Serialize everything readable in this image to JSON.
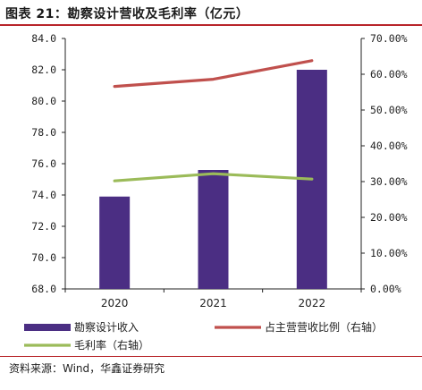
{
  "title": "图表 21：勘察设计营收及毛利率（亿元）",
  "source": "资料来源：Wind，华鑫证券研究",
  "colors": {
    "bar": "#4b2e83",
    "share_line": "#c0504d",
    "margin_line": "#9bbb59",
    "rule": "#b8242a"
  },
  "chart_data": {
    "type": "bar",
    "categories": [
      "2020",
      "2021",
      "2022"
    ],
    "left_axis": {
      "min": 68.0,
      "max": 84.0,
      "step": 2.0,
      "ticks": [
        "68.0",
        "70.0",
        "72.0",
        "74.0",
        "76.0",
        "78.0",
        "80.0",
        "82.0",
        "84.0"
      ]
    },
    "right_axis": {
      "min": 0,
      "max": 70,
      "step": 10,
      "ticks": [
        "0.00%",
        "10.00%",
        "20.00%",
        "30.00%",
        "40.00%",
        "50.00%",
        "60.00%",
        "70.00%"
      ]
    },
    "series": [
      {
        "name": "勘察设计收入",
        "kind": "bar",
        "axis": "left",
        "values": [
          73.9,
          75.6,
          82.0
        ]
      },
      {
        "name": "占主营营收比例（右轴）",
        "kind": "line",
        "axis": "right",
        "values": [
          56.6,
          58.6,
          63.8
        ]
      },
      {
        "name": "毛利率（右轴）",
        "kind": "line",
        "axis": "right",
        "values": [
          30.2,
          32.2,
          30.7
        ]
      }
    ],
    "legend_position": "bottom"
  }
}
